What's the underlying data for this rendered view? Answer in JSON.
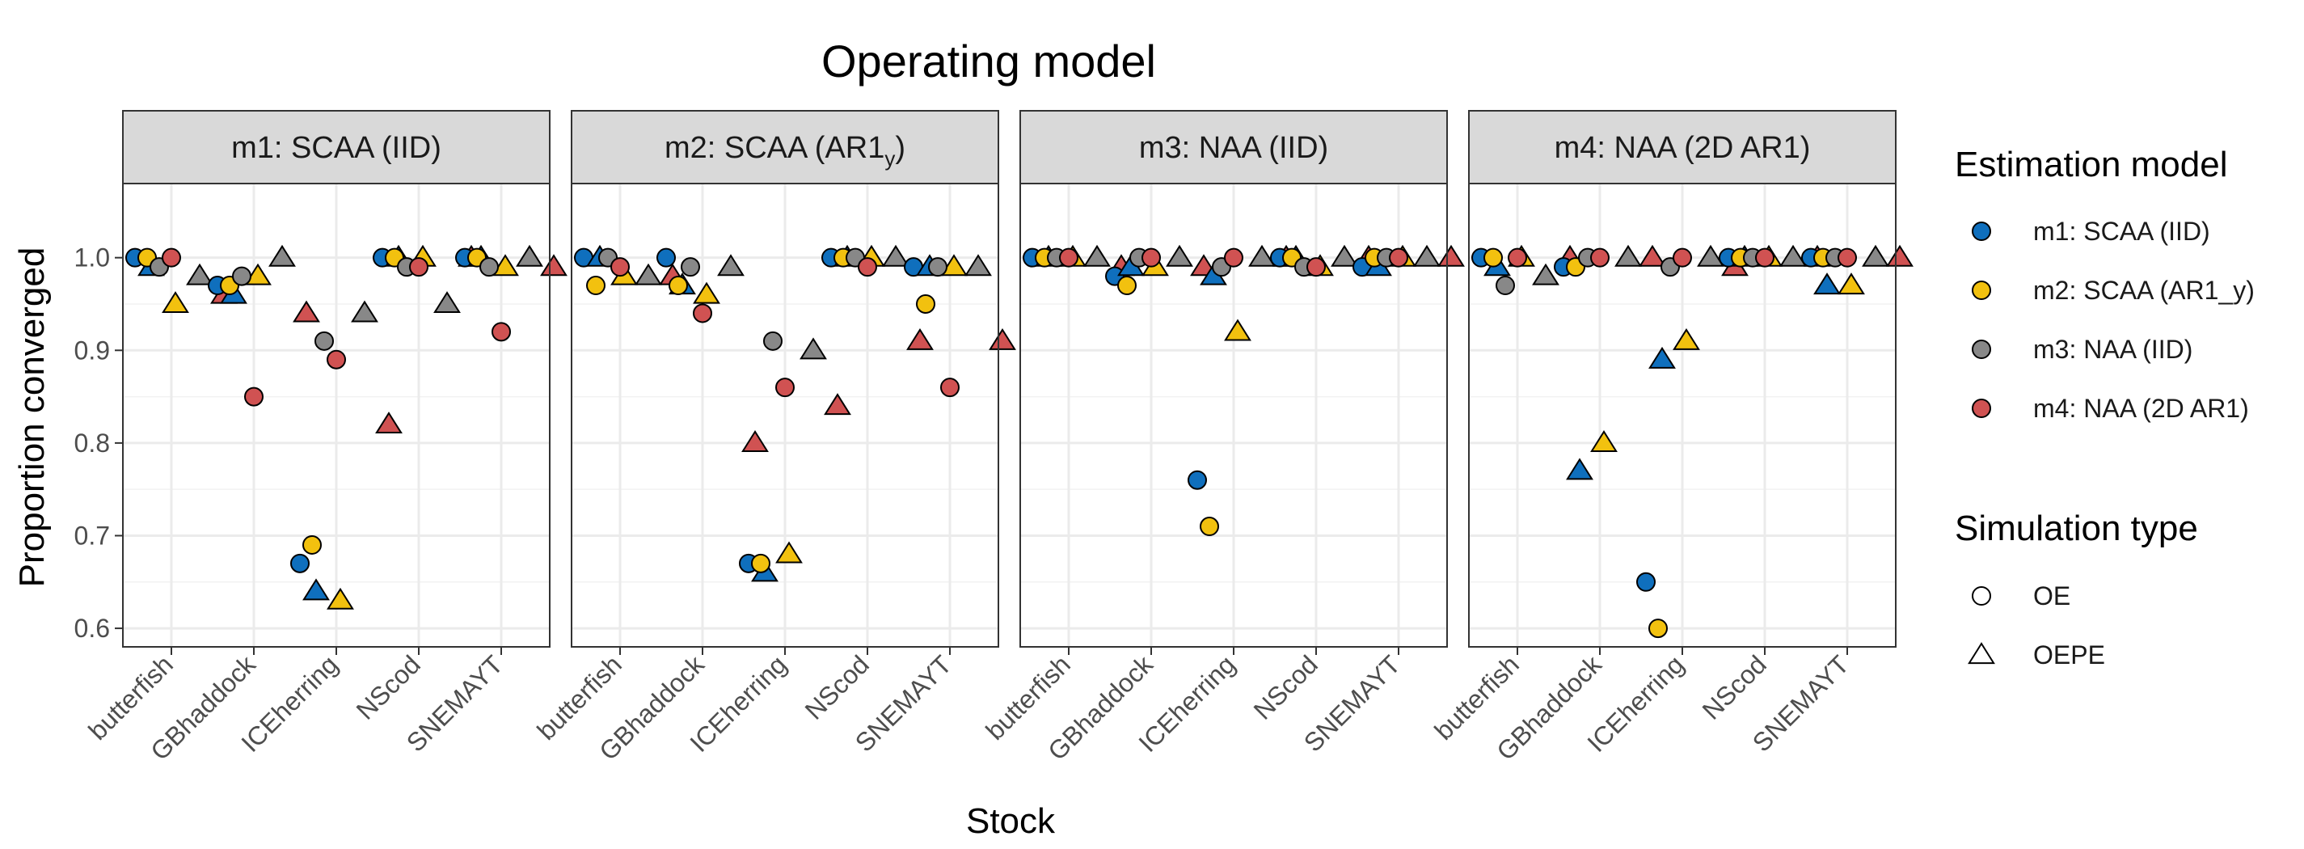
{
  "chart_data": {
    "type": "scatter",
    "title": "Operating model",
    "xlabel": "Stock",
    "ylabel": "Proportion converged",
    "categories": [
      "butterfish",
      "GBhaddock",
      "ICEherring",
      "NScod",
      "SNEMAYT"
    ],
    "ylim": [
      0.58,
      1.08
    ],
    "yticks": [
      "0.6",
      "0.7",
      "0.8",
      "0.9",
      "1.0"
    ],
    "ytick_values": [
      0.6,
      0.7,
      0.8,
      0.9,
      1.0
    ],
    "grid": true,
    "legend_position": "right",
    "estimation_models": [
      "m1",
      "m2",
      "m3",
      "m4"
    ],
    "simulation_types": [
      "OE",
      "OEPE"
    ],
    "colors": {
      "m1": "#0f6fbd",
      "m2": "#f2c10f",
      "m3": "#888888",
      "m4": "#d05252"
    },
    "panels": [
      {
        "label_main": "m1:  SCAA  (IID)",
        "label_sub": "",
        "values": {
          "butterfish": {
            "OE": [
              1.0,
              1.0,
              0.99,
              1.0
            ],
            "OEPE": [
              0.99,
              0.95,
              0.98,
              0.96
            ]
          },
          "GBhaddock": {
            "OE": [
              0.97,
              0.97,
              0.98,
              0.85
            ],
            "OEPE": [
              0.96,
              0.98,
              1.0,
              0.94
            ]
          },
          "ICEherring": {
            "OE": [
              0.67,
              0.69,
              0.91,
              0.89
            ],
            "OEPE": [
              0.64,
              0.63,
              0.94,
              0.82
            ]
          },
          "NScod": {
            "OE": [
              1.0,
              1.0,
              0.99,
              0.99
            ],
            "OEPE": [
              1.0,
              1.0,
              0.95,
              1.0
            ]
          },
          "SNEMAYT": {
            "OE": [
              1.0,
              1.0,
              0.99,
              0.92
            ],
            "OEPE": [
              1.0,
              0.99,
              1.0,
              0.99
            ]
          }
        }
      },
      {
        "label_main": "m2:  SCAA (AR1",
        "label_sub": "y",
        "values": {
          "butterfish": {
            "OE": [
              1.0,
              0.97,
              1.0,
              0.99
            ],
            "OEPE": [
              1.0,
              0.98,
              0.98,
              0.98
            ]
          },
          "GBhaddock": {
            "OE": [
              1.0,
              0.97,
              0.99,
              0.94
            ],
            "OEPE": [
              0.97,
              0.96,
              0.99,
              0.8
            ]
          },
          "ICEherring": {
            "OE": [
              0.67,
              0.67,
              0.91,
              0.86
            ],
            "OEPE": [
              0.66,
              0.68,
              0.9,
              0.84
            ]
          },
          "NScod": {
            "OE": [
              1.0,
              1.0,
              1.0,
              0.99
            ],
            "OEPE": [
              1.0,
              1.0,
              1.0,
              0.91
            ]
          },
          "SNEMAYT": {
            "OE": [
              0.99,
              0.95,
              0.99,
              0.86
            ],
            "OEPE": [
              0.99,
              0.99,
              0.99,
              0.91
            ]
          }
        }
      },
      {
        "label_main": "m3:  NAA  (IID)",
        "label_sub": "",
        "values": {
          "butterfish": {
            "OE": [
              1.0,
              1.0,
              1.0,
              1.0
            ],
            "OEPE": [
              1.0,
              1.0,
              1.0,
              0.99
            ]
          },
          "GBhaddock": {
            "OE": [
              0.98,
              0.97,
              1.0,
              1.0
            ],
            "OEPE": [
              0.99,
              0.99,
              1.0,
              0.99
            ]
          },
          "ICEherring": {
            "OE": [
              0.76,
              0.71,
              0.99,
              1.0
            ],
            "OEPE": [
              0.98,
              0.92,
              1.0,
              1.0
            ]
          },
          "NScod": {
            "OE": [
              1.0,
              1.0,
              0.99,
              0.99
            ],
            "OEPE": [
              1.0,
              0.99,
              1.0,
              1.0
            ]
          },
          "SNEMAYT": {
            "OE": [
              0.99,
              1.0,
              1.0,
              1.0
            ],
            "OEPE": [
              0.99,
              1.0,
              1.0,
              1.0
            ]
          }
        }
      },
      {
        "label_main": "m4:  NAA  (2D AR1)",
        "label_sub": "",
        "values": {
          "butterfish": {
            "OE": [
              1.0,
              1.0,
              0.97,
              1.0
            ],
            "OEPE": [
              0.99,
              1.0,
              0.98,
              1.0
            ]
          },
          "GBhaddock": {
            "OE": [
              0.99,
              0.99,
              1.0,
              1.0
            ],
            "OEPE": [
              0.77,
              0.8,
              1.0,
              1.0
            ]
          },
          "ICEherring": {
            "OE": [
              0.65,
              0.6,
              0.99,
              1.0
            ],
            "OEPE": [
              0.89,
              0.91,
              1.0,
              0.99
            ]
          },
          "NScod": {
            "OE": [
              1.0,
              1.0,
              1.0,
              1.0
            ],
            "OEPE": [
              1.0,
              1.0,
              1.0,
              1.0
            ]
          },
          "SNEMAYT": {
            "OE": [
              1.0,
              1.0,
              1.0,
              1.0
            ],
            "OEPE": [
              0.97,
              0.97,
              1.0,
              1.0
            ]
          }
        }
      }
    ],
    "legend": {
      "estimation_title": "Estimation model",
      "estimation_items": [
        {
          "key": "m1",
          "label": "m1: SCAA (IID)"
        },
        {
          "key": "m2",
          "label": "m2: SCAA (AR1_y)"
        },
        {
          "key": "m3",
          "label": "m3: NAA (IID)"
        },
        {
          "key": "m4",
          "label": "m4: NAA (2D AR1)"
        }
      ],
      "simulation_title": "Simulation type",
      "simulation_items": [
        {
          "key": "OE",
          "label": "OE",
          "shape": "circle"
        },
        {
          "key": "OEPE",
          "label": "OEPE",
          "shape": "triangle"
        }
      ]
    }
  }
}
